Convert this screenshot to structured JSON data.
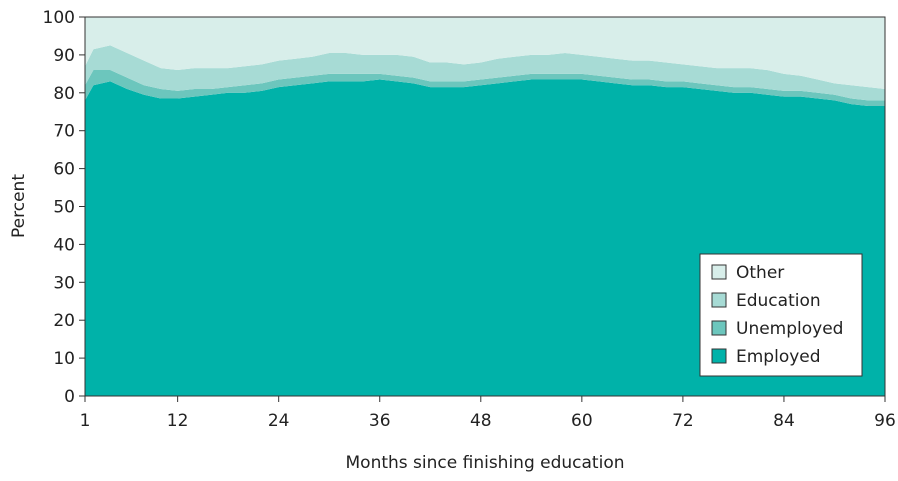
{
  "chart_data": {
    "type": "area",
    "stacked": true,
    "title": "",
    "xlabel": "Months since finishing education",
    "ylabel": "Percent",
    "xlim": [
      1,
      96
    ],
    "ylim": [
      0,
      100
    ],
    "x_ticks": [
      1,
      12,
      24,
      36,
      48,
      60,
      72,
      84,
      96
    ],
    "y_ticks": [
      0,
      10,
      20,
      30,
      40,
      50,
      60,
      70,
      80,
      90,
      100
    ],
    "grid": false,
    "legend_position": "lower-right",
    "legend_order": [
      "Other",
      "Education",
      "Unemployed",
      "Employed"
    ],
    "x": [
      1,
      2,
      4,
      6,
      8,
      10,
      12,
      14,
      16,
      18,
      20,
      22,
      24,
      26,
      28,
      30,
      32,
      34,
      36,
      38,
      40,
      42,
      44,
      46,
      48,
      50,
      52,
      54,
      56,
      58,
      60,
      62,
      64,
      66,
      68,
      70,
      72,
      74,
      76,
      78,
      80,
      82,
      84,
      86,
      88,
      90,
      92,
      94,
      96
    ],
    "series": [
      {
        "name": "Employed",
        "color": "#00b2a9",
        "values": [
          78,
          82,
          83,
          81,
          79.5,
          78.5,
          78.5,
          79,
          79.5,
          80,
          80,
          80.5,
          81.5,
          82,
          82.5,
          83,
          83,
          83,
          83.5,
          83,
          82.5,
          81.5,
          81.5,
          81.5,
          82,
          82.5,
          83,
          83.5,
          83.5,
          83.5,
          83.5,
          83,
          82.5,
          82,
          82,
          81.5,
          81.5,
          81,
          80.5,
          80,
          80,
          79.5,
          79,
          79,
          78.5,
          78,
          77,
          76.5,
          76.5
        ]
      },
      {
        "name": "Unemployed",
        "color": "#6cc6bd",
        "values": [
          4,
          4,
          3,
          3,
          2.5,
          2.5,
          2,
          2,
          1.5,
          1.5,
          2,
          2,
          2,
          2,
          2,
          2,
          2,
          2,
          1.5,
          1.5,
          1.5,
          1.5,
          1.5,
          1.5,
          1.5,
          1.5,
          1.5,
          1.5,
          1.5,
          1.5,
          1.5,
          1.5,
          1.5,
          1.5,
          1.5,
          1.5,
          1.5,
          1.5,
          1.5,
          1.5,
          1.5,
          1.5,
          1.5,
          1.5,
          1.5,
          1.5,
          1.5,
          1.5,
          1.5
        ]
      },
      {
        "name": "Education",
        "color": "#a7dbd5",
        "values": [
          5,
          5.5,
          6.5,
          6.5,
          6.5,
          5.5,
          5.5,
          5.5,
          5.5,
          5,
          5,
          5,
          5,
          5,
          5,
          5.5,
          5.5,
          5,
          5,
          5.5,
          5.5,
          5,
          5,
          4.5,
          4.5,
          5,
          5,
          5,
          5,
          5.5,
          5,
          5,
          5,
          5,
          5,
          5,
          4.5,
          4.5,
          4.5,
          5,
          5,
          5,
          4.5,
          4,
          3.5,
          3,
          3.5,
          3.5,
          3
        ]
      },
      {
        "name": "Other",
        "color": "#d8eeea",
        "values": [
          13,
          8.5,
          7.5,
          9.5,
          11.5,
          13.5,
          14,
          13.5,
          13.5,
          13.5,
          13,
          12.5,
          11.5,
          11,
          10.5,
          9.5,
          9.5,
          10,
          10,
          10,
          10.5,
          12,
          12,
          12.5,
          12,
          11,
          10.5,
          10,
          10,
          9.5,
          10,
          10.5,
          11,
          11.5,
          11.5,
          12,
          12.5,
          13,
          13.5,
          13.5,
          13.5,
          14,
          15,
          15.5,
          16.5,
          17.5,
          18,
          18.5,
          19
        ]
      }
    ]
  }
}
